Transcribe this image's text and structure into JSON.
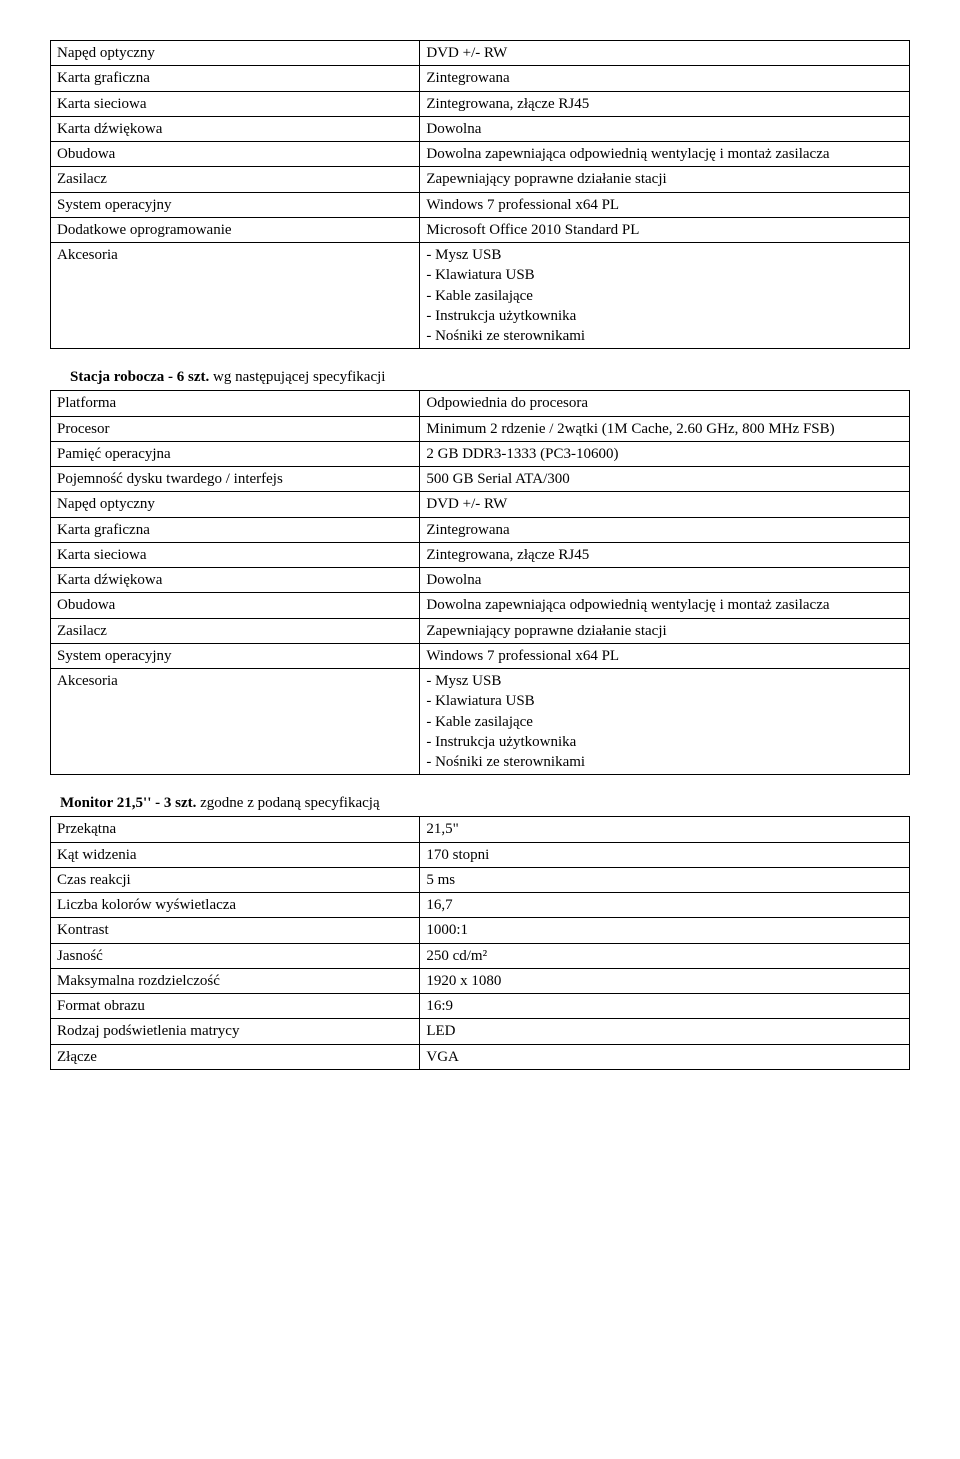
{
  "table1": {
    "rows": [
      [
        "Napęd optyczny",
        "DVD +/- RW"
      ],
      [
        "Karta graficzna",
        "Zintegrowana"
      ],
      [
        "Karta sieciowa",
        "Zintegrowana, złącze RJ45"
      ],
      [
        "Karta dźwiękowa",
        "Dowolna"
      ],
      [
        "Obudowa",
        "Dowolna zapewniająca odpowiednią wentylację i montaż zasilacza"
      ],
      [
        "Zasilacz",
        "Zapewniający poprawne działanie stacji"
      ],
      [
        "System operacyjny",
        "Windows 7 professional x64 PL"
      ],
      [
        "Dodatkowe oprogramowanie",
        "Microsoft Office 2010 Standard PL"
      ],
      [
        "Akcesoria",
        "- Mysz USB\n- Klawiatura USB\n- Kable zasilające\n- Instrukcja użytkownika\n- Nośniki ze sterownikami"
      ]
    ]
  },
  "section2": {
    "title_bold": "Stacja robocza - 6 szt.",
    "title_rest": " wg następującej specyfikacji"
  },
  "table2": {
    "rows": [
      [
        "Platforma",
        "Odpowiednia do procesora"
      ],
      [
        "Procesor",
        "Minimum 2 rdzenie / 2wątki (1M Cache, 2.60 GHz, 800 MHz FSB)"
      ],
      [
        "Pamięć operacyjna",
        "2 GB DDR3-1333 (PC3-10600)"
      ],
      [
        "Pojemność dysku twardego / interfejs",
        "500 GB Serial ATA/300"
      ],
      [
        "Napęd optyczny",
        "DVD +/- RW"
      ],
      [
        "Karta graficzna",
        "Zintegrowana"
      ],
      [
        "Karta sieciowa",
        "Zintegrowana, złącze RJ45"
      ],
      [
        "Karta dźwiękowa",
        "Dowolna"
      ],
      [
        "Obudowa",
        "Dowolna zapewniająca odpowiednią wentylację i montaż zasilacza"
      ],
      [
        "Zasilacz",
        "Zapewniający poprawne działanie stacji"
      ],
      [
        "System operacyjny",
        "Windows 7 professional x64 PL"
      ],
      [
        "Akcesoria",
        "- Mysz USB\n- Klawiatura USB\n- Kable zasilające\n- Instrukcja użytkownika\n- Nośniki ze sterownikami"
      ]
    ]
  },
  "section3": {
    "title_bold": "Monitor 21,5'' - 3 szt.",
    "title_rest": " zgodne z podaną specyfikacją"
  },
  "table3": {
    "rows": [
      [
        "Przekątna",
        "21,5\""
      ],
      [
        "Kąt widzenia",
        "170 stopni"
      ],
      [
        "Czas reakcji",
        "5 ms"
      ],
      [
        "Liczba kolorów wyświetlacza",
        "16,7"
      ],
      [
        "Kontrast",
        "1000:1"
      ],
      [
        "Jasność",
        "250 cd/m²"
      ],
      [
        "Maksymalna rozdzielczość",
        "1920 x 1080"
      ],
      [
        "Format obrazu",
        "16:9"
      ],
      [
        "Rodzaj podświetlenia matrycy",
        "LED"
      ],
      [
        "Złącze",
        "VGA"
      ]
    ]
  }
}
